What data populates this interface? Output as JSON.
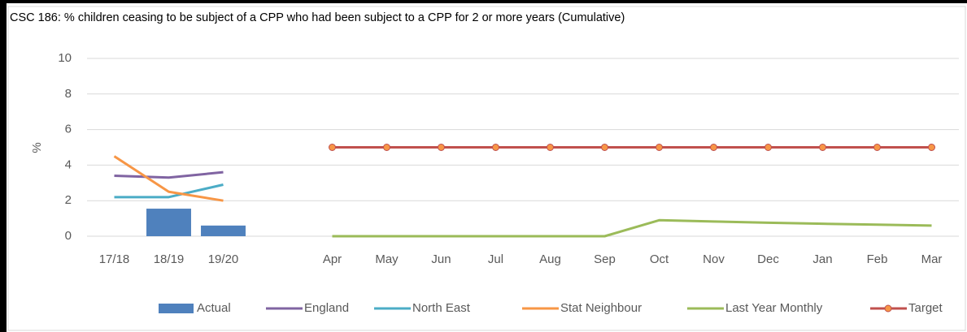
{
  "chart_data": {
    "type": "combo",
    "title": "CSC 186: % children ceasing to be subject of a CPP who had been subject to a CPP for 2 or more years (Cumulative)",
    "y_label": "%",
    "categories": [
      "17/18",
      "18/19",
      "19/20",
      null,
      "Apr",
      "May",
      "Jun",
      "Jul",
      "Aug",
      "Sep",
      "Oct",
      "Nov",
      "Dec",
      "Jan",
      "Feb",
      "Mar"
    ],
    "ylim": [
      0,
      10
    ],
    "yticks": [
      0,
      2,
      4,
      6,
      8,
      10
    ],
    "grid": true,
    "legend": "bottom",
    "series": [
      {
        "name": "Actual",
        "type": "bar",
        "color": "#4f81bd",
        "values": [
          null,
          1.55,
          0.6,
          null,
          null,
          null,
          null,
          null,
          null,
          null,
          null,
          null,
          null,
          null,
          null,
          null
        ]
      },
      {
        "name": "England",
        "type": "line",
        "color": "#8064a2",
        "values": [
          3.4,
          3.3,
          3.6,
          null,
          null,
          null,
          null,
          null,
          null,
          null,
          null,
          null,
          null,
          null,
          null,
          null
        ]
      },
      {
        "name": "North East",
        "type": "line",
        "color": "#4bacc6",
        "values": [
          2.2,
          2.2,
          2.9,
          null,
          null,
          null,
          null,
          null,
          null,
          null,
          null,
          null,
          null,
          null,
          null,
          null
        ]
      },
      {
        "name": "Stat Neighbour",
        "type": "line",
        "color": "#f79646",
        "values": [
          4.5,
          2.5,
          2.0,
          null,
          null,
          null,
          null,
          null,
          null,
          null,
          null,
          null,
          null,
          null,
          null,
          null
        ]
      },
      {
        "name": "Last Year Monthly",
        "type": "line",
        "color": "#9bbb59",
        "values": [
          null,
          null,
          null,
          null,
          0,
          0,
          0,
          0,
          0,
          0,
          0.9,
          0.83,
          0.76,
          0.7,
          0.65,
          0.6
        ]
      },
      {
        "name": "Target",
        "type": "line",
        "color": "#c0504d",
        "marker_color": "#f79646",
        "markers": true,
        "values": [
          null,
          null,
          null,
          null,
          5,
          5,
          5,
          5,
          5,
          5,
          5,
          5,
          5,
          5,
          5,
          5
        ]
      }
    ]
  }
}
